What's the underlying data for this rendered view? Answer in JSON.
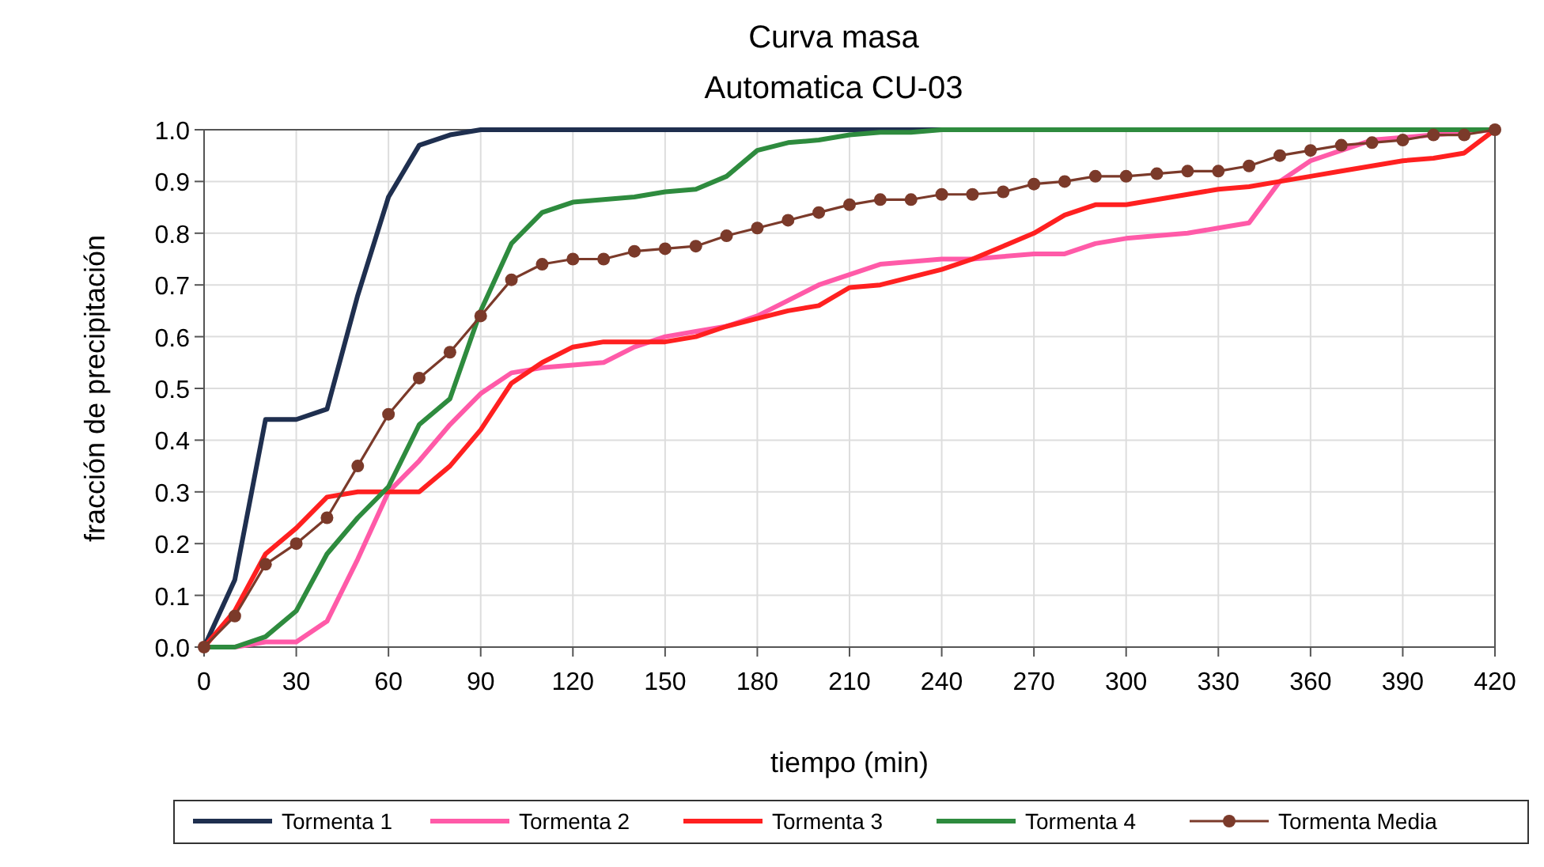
{
  "chart_data": {
    "type": "line",
    "title": "Curva masa",
    "subtitle": "Automatica CU-03",
    "xlabel": "tiempo (min)",
    "ylabel": "fracción de precipitación",
    "x": [
      0,
      10,
      20,
      30,
      40,
      50,
      60,
      70,
      80,
      90,
      100,
      110,
      120,
      130,
      140,
      150,
      160,
      170,
      180,
      190,
      200,
      210,
      220,
      230,
      240,
      250,
      260,
      270,
      280,
      290,
      300,
      310,
      320,
      330,
      340,
      350,
      360,
      370,
      380,
      390,
      400,
      410,
      420
    ],
    "series": [
      {
        "name": "Tormenta 1",
        "color": "#1f2f4f",
        "marker": "none",
        "values": [
          0,
          0.13,
          0.44,
          0.44,
          0.46,
          0.68,
          0.87,
          0.97,
          0.99,
          1,
          1,
          1,
          1,
          1,
          1,
          1,
          1,
          1,
          1,
          1,
          1,
          1,
          1,
          1,
          1,
          1,
          null,
          null,
          null,
          null,
          null,
          null,
          null,
          null,
          null,
          null,
          null,
          null,
          null,
          null,
          null,
          null,
          null
        ]
      },
      {
        "name": "Tormenta 2",
        "color": "#ff5aa8",
        "marker": "none",
        "values": [
          0,
          0,
          0.01,
          0.01,
          0.05,
          0.17,
          0.3,
          0.36,
          0.43,
          0.49,
          0.53,
          0.54,
          0.545,
          0.55,
          0.58,
          0.6,
          0.61,
          0.62,
          0.64,
          0.67,
          0.7,
          0.72,
          0.74,
          0.745,
          0.75,
          0.75,
          0.755,
          0.76,
          0.76,
          0.78,
          0.79,
          0.795,
          0.8,
          0.81,
          0.82,
          0.9,
          0.94,
          0.96,
          0.98,
          0.985,
          0.99,
          0.995,
          1
        ]
      },
      {
        "name": "Tormenta 3",
        "color": "#ff2020",
        "marker": "none",
        "values": [
          0,
          0.07,
          0.18,
          0.23,
          0.29,
          0.3,
          0.3,
          0.3,
          0.35,
          0.42,
          0.51,
          0.55,
          0.58,
          0.59,
          0.59,
          0.59,
          0.6,
          0.62,
          0.635,
          0.65,
          0.66,
          0.695,
          0.7,
          0.715,
          0.73,
          0.75,
          0.775,
          0.8,
          0.835,
          0.855,
          0.855,
          0.865,
          0.875,
          0.885,
          0.89,
          0.9,
          0.91,
          0.92,
          0.93,
          0.94,
          0.945,
          0.955,
          1
        ]
      },
      {
        "name": "Tormenta 4",
        "color": "#2e8b3e",
        "marker": "none",
        "values": [
          0,
          0,
          0.02,
          0.07,
          0.18,
          0.25,
          0.31,
          0.43,
          0.48,
          0.65,
          0.78,
          0.84,
          0.86,
          0.865,
          0.87,
          0.88,
          0.885,
          0.91,
          0.96,
          0.975,
          0.98,
          0.99,
          0.995,
          0.995,
          1,
          1,
          1,
          1,
          1,
          1,
          1,
          1,
          1,
          1,
          1,
          1,
          1,
          1,
          1,
          1,
          1,
          1,
          1
        ]
      },
      {
        "name": "Tormenta Media",
        "color": "#7b3a2a",
        "marker": "circle",
        "values": [
          0,
          0.06,
          0.16,
          0.2,
          0.25,
          0.35,
          0.45,
          0.52,
          0.57,
          0.64,
          0.71,
          0.74,
          0.75,
          0.75,
          0.765,
          0.77,
          0.775,
          0.795,
          0.81,
          0.825,
          0.84,
          0.855,
          0.865,
          0.865,
          0.875,
          0.875,
          0.88,
          0.895,
          0.9,
          0.91,
          0.91,
          0.915,
          0.92,
          0.92,
          0.93,
          0.95,
          0.96,
          0.97,
          0.975,
          0.98,
          0.99,
          0.99,
          1
        ]
      }
    ],
    "xlim": [
      0,
      420
    ],
    "xticks": [
      0,
      30,
      60,
      90,
      120,
      150,
      180,
      210,
      240,
      270,
      300,
      330,
      360,
      390,
      420
    ],
    "ylim": [
      0,
      1
    ],
    "yticks": [
      {
        "value": 0,
        "label": "0.0"
      },
      {
        "value": 0.1,
        "label": "0.1"
      },
      {
        "value": 0.2,
        "label": "0.2"
      },
      {
        "value": 0.3,
        "label": "0.3"
      },
      {
        "value": 0.4,
        "label": "0.4"
      },
      {
        "value": 0.5,
        "label": "0.5"
      },
      {
        "value": 0.6,
        "label": "0.6"
      },
      {
        "value": 0.7,
        "label": "0.7"
      },
      {
        "value": 0.8,
        "label": "0.8"
      },
      {
        "value": 0.9,
        "label": "0.9"
      },
      {
        "value": 1,
        "label": "1.0"
      }
    ],
    "grid": true,
    "legend": "bottom",
    "line_style": "solid"
  }
}
